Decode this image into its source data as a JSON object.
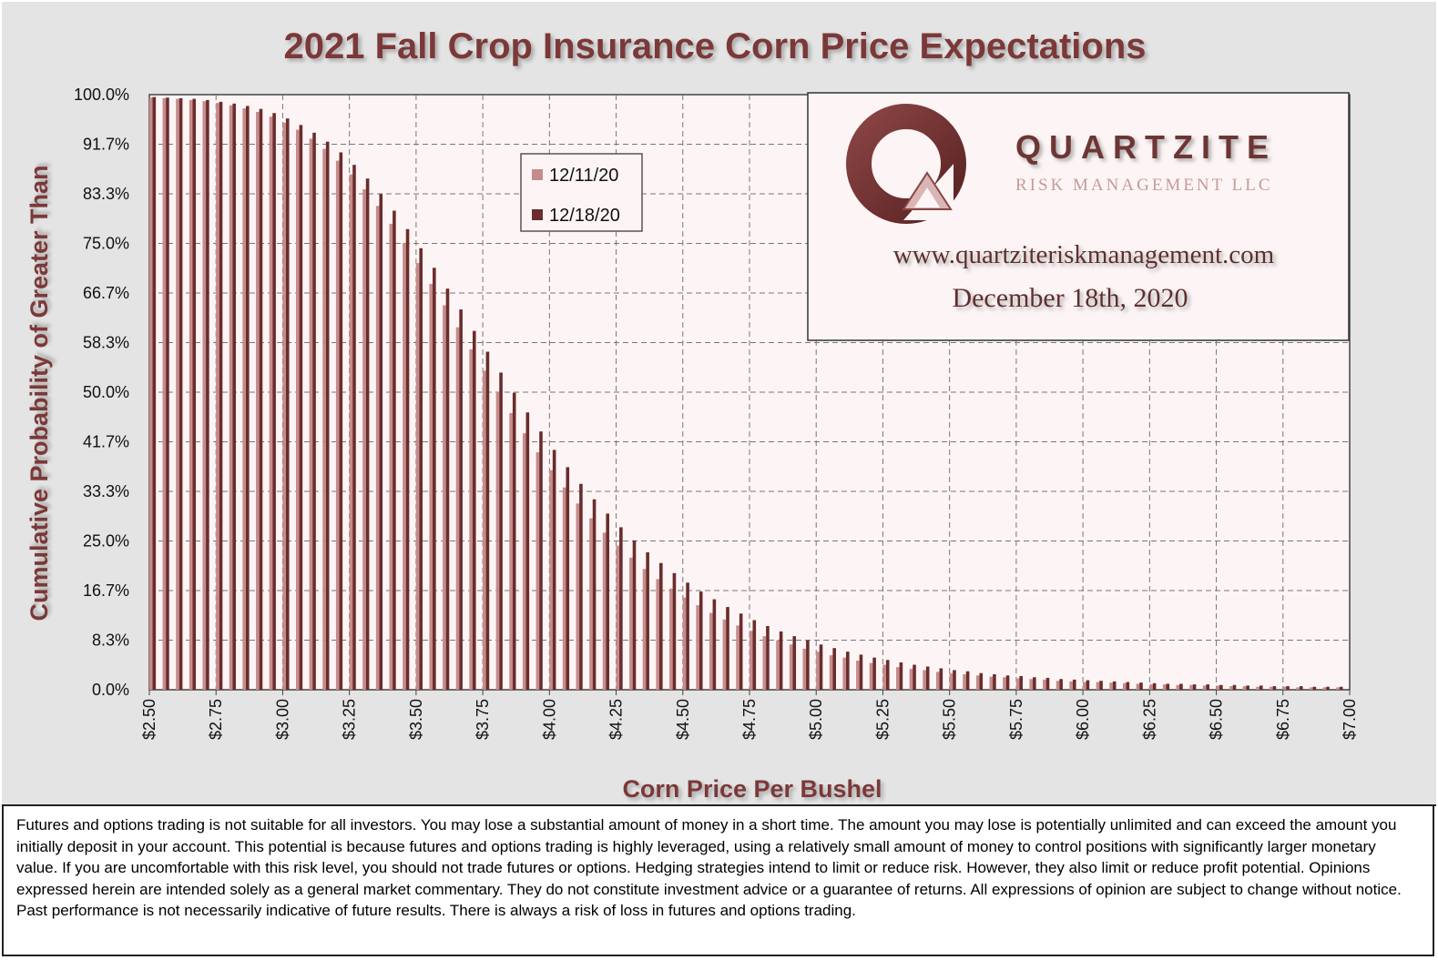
{
  "chart_data": {
    "type": "bar",
    "title": "2021 Fall Crop Insurance Corn Price Expectations",
    "xlabel": "Corn Price Per Bushel",
    "ylabel": "Cumulative Probability of Greater Than",
    "x_range": [
      2.5,
      7.0
    ],
    "x_step": 0.05,
    "ylim": [
      0,
      100
    ],
    "x_ticks": [
      "$2.50",
      "$2.75",
      "$3.00",
      "$3.25",
      "$3.50",
      "$3.75",
      "$4.00",
      "$4.25",
      "$4.50",
      "$4.75",
      "$5.00",
      "$5.25",
      "$5.50",
      "$5.75",
      "$6.00",
      "$6.25",
      "$6.50",
      "$6.75",
      "$7.00"
    ],
    "y_ticks": [
      "0.0%",
      "8.3%",
      "16.7%",
      "25.0%",
      "33.3%",
      "41.7%",
      "50.0%",
      "58.3%",
      "66.7%",
      "75.0%",
      "83.3%",
      "91.7%",
      "100.0%"
    ],
    "grid": true,
    "legend_position": "top-center",
    "colors": {
      "series1": "#c48c8c",
      "series2": "#6b2c2c",
      "plot_bg": "#fdf5f5",
      "title": "#7b3737"
    },
    "series": [
      {
        "name": "12/11/20",
        "values": [
          99.5,
          99.4,
          99.3,
          99.1,
          98.9,
          98.6,
          98.2,
          97.7,
          97.1,
          96.3,
          95.3,
          94.1,
          92.6,
          90.9,
          88.9,
          86.6,
          84.1,
          81.3,
          78.3,
          75.1,
          71.7,
          68.2,
          64.6,
          60.9,
          57.2,
          53.6,
          50.0,
          46.5,
          43.1,
          39.9,
          36.9,
          34.0,
          31.3,
          28.8,
          26.4,
          24.2,
          22.2,
          20.3,
          18.6,
          17.0,
          15.5,
          14.2,
          12.9,
          11.8,
          10.8,
          9.9,
          9.0,
          8.3,
          7.6,
          6.9,
          6.4,
          5.8,
          5.4,
          4.9,
          4.5,
          4.2,
          3.8,
          3.5,
          3.3,
          3.0,
          2.8,
          2.6,
          2.4,
          2.2,
          2.1,
          1.9,
          1.8,
          1.7,
          1.5,
          1.4,
          1.3,
          1.3,
          1.2,
          1.1,
          1.0,
          0.9,
          0.9,
          0.8,
          0.8,
          0.7,
          0.7,
          0.6,
          0.6,
          0.5,
          0.5,
          0.5,
          0.4,
          0.4,
          0.4,
          0.4
        ]
      },
      {
        "name": "12/18/20",
        "values": [
          99.6,
          99.5,
          99.4,
          99.3,
          99.1,
          98.8,
          98.5,
          98.1,
          97.6,
          96.9,
          96.0,
          94.9,
          93.6,
          92.1,
          90.3,
          88.2,
          85.9,
          83.3,
          80.5,
          77.4,
          74.2,
          70.9,
          67.4,
          63.9,
          60.3,
          56.8,
          53.3,
          49.9,
          46.6,
          43.4,
          40.3,
          37.4,
          34.6,
          32.0,
          29.6,
          27.3,
          25.1,
          23.1,
          21.3,
          19.6,
          18.0,
          16.5,
          15.2,
          13.9,
          12.8,
          11.7,
          10.7,
          9.8,
          9.0,
          8.3,
          7.6,
          7.0,
          6.4,
          5.9,
          5.4,
          5.0,
          4.6,
          4.2,
          3.9,
          3.6,
          3.3,
          3.1,
          2.8,
          2.6,
          2.4,
          2.3,
          2.1,
          2.0,
          1.8,
          1.7,
          1.6,
          1.5,
          1.4,
          1.3,
          1.2,
          1.1,
          1.0,
          1.0,
          0.9,
          0.9,
          0.8,
          0.8,
          0.7,
          0.7,
          0.6,
          0.6,
          0.6,
          0.5,
          0.5,
          0.5
        ]
      }
    ]
  },
  "watermark": {
    "brand": "QUARTZITE",
    "subtitle": "RISK MANAGEMENT LLC",
    "url": "www.quartziteriskmanagement.com",
    "date": "December 18th, 2020"
  },
  "disclaimer": "Futures and options trading is not suitable for all investors. You may lose a substantial amount of money in a short time. The amount you may lose is potentially unlimited and can exceed the amount you initially deposit in your account. This potential is because futures and options trading is highly leveraged, using a relatively small amount of money to control positions with significantly larger monetary value. If you are uncomfortable with this risk level, you should not trade futures or options. Hedging strategies intend to limit or reduce risk. However, they also limit or reduce profit potential. Opinions expressed herein are intended solely as a general market commentary. They do not constitute investment advice or a guarantee of returns. All expressions of opinion are subject to change without notice. Past performance is not necessarily indicative of future results. There is always a risk of loss in futures and options trading."
}
